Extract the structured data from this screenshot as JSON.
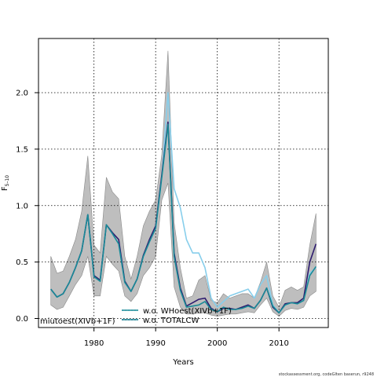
{
  "chart_data": {
    "type": "line",
    "ylabel_main": "F",
    "ylabel_sub": "5–10",
    "xlabel": "Years",
    "xlim": [
      1971,
      2018
    ],
    "ylim": [
      -0.08,
      2.48
    ],
    "xticks": [
      1980,
      1990,
      2000,
      2010
    ],
    "yticks": [
      0.0,
      0.5,
      1.0,
      1.5,
      2.0
    ],
    "ytick_labels": [
      "0.0",
      "0.5",
      "1.0",
      "1.5",
      "2.0"
    ],
    "grid": true,
    "years": [
      1973,
      1974,
      1975,
      1976,
      1977,
      1978,
      1979,
      1980,
      1981,
      1982,
      1983,
      1984,
      1985,
      1986,
      1987,
      1988,
      1989,
      1990,
      1991,
      1992,
      1993,
      1994,
      1995,
      1996,
      1997,
      1998,
      1999,
      2000,
      2001,
      2002,
      2003,
      2004,
      2005,
      2006,
      2007,
      2008,
      2009,
      2010,
      2011,
      2012,
      2013,
      2014,
      2015,
      2016
    ],
    "band": {
      "color": "#bebebe",
      "upper": [
        0.55,
        0.4,
        0.42,
        0.55,
        0.7,
        0.95,
        1.44,
        0.65,
        0.58,
        1.25,
        1.12,
        1.06,
        0.55,
        0.35,
        0.55,
        0.82,
        0.95,
        1.05,
        1.45,
        2.37,
        0.85,
        0.45,
        0.18,
        0.2,
        0.34,
        0.38,
        0.16,
        0.14,
        0.22,
        0.18,
        0.2,
        0.22,
        0.22,
        0.18,
        0.32,
        0.5,
        0.2,
        0.1,
        0.25,
        0.28,
        0.25,
        0.28,
        0.65,
        0.93
      ],
      "lower": [
        0.12,
        0.08,
        0.1,
        0.2,
        0.3,
        0.38,
        0.55,
        0.2,
        0.2,
        0.55,
        0.48,
        0.42,
        0.2,
        0.15,
        0.22,
        0.38,
        0.45,
        0.55,
        1.05,
        1.2,
        0.28,
        0.1,
        0.04,
        0.04,
        0.05,
        0.05,
        0.03,
        0.02,
        0.03,
        0.04,
        0.04,
        0.05,
        0.06,
        0.05,
        0.12,
        0.18,
        0.06,
        0.02,
        0.07,
        0.09,
        0.08,
        0.1,
        0.2,
        0.24
      ]
    },
    "series": [
      {
        "name": "miutoest(XIVb+1F)",
        "color": "#1a8a96",
        "width": 1.6,
        "values": [
          0.26,
          0.19,
          0.22,
          0.32,
          0.45,
          0.6,
          0.92,
          0.37,
          0.33,
          0.83,
          0.75,
          0.66,
          0.32,
          0.24,
          0.35,
          0.55,
          0.68,
          0.8,
          1.25,
          1.72,
          0.55,
          0.25,
          0.1,
          0.11,
          0.12,
          0.15,
          0.08,
          0.06,
          0.1,
          0.08,
          0.08,
          0.09,
          0.11,
          0.09,
          0.16,
          0.27,
          0.11,
          0.05,
          0.12,
          0.14,
          0.13,
          0.16,
          0.38,
          0.46
        ]
      },
      {
        "name": "w.o. WHoest(XIVb+1F)",
        "color": "#87ceeb",
        "width": 1.6,
        "values": [
          0.26,
          0.19,
          0.22,
          0.32,
          0.45,
          0.6,
          0.92,
          0.37,
          0.33,
          0.83,
          0.75,
          0.66,
          0.32,
          0.24,
          0.35,
          0.55,
          0.68,
          0.8,
          1.25,
          2.0,
          1.15,
          0.98,
          0.7,
          0.58,
          0.58,
          0.45,
          0.18,
          0.1,
          0.15,
          0.2,
          0.22,
          0.24,
          0.26,
          0.18,
          0.3,
          0.38,
          0.12,
          0.05,
          0.12,
          0.14,
          0.13,
          0.16,
          0.4,
          0.45
        ]
      },
      {
        "name": "w.o. TOTALCW",
        "color": "#2d1b6e",
        "width": 1.6,
        "values": [
          0.26,
          0.19,
          0.22,
          0.32,
          0.45,
          0.6,
          0.92,
          0.38,
          0.34,
          0.83,
          0.76,
          0.7,
          0.33,
          0.24,
          0.35,
          0.56,
          0.7,
          0.82,
          1.27,
          1.74,
          0.58,
          0.27,
          0.11,
          0.14,
          0.17,
          0.18,
          0.09,
          0.06,
          0.09,
          0.09,
          0.08,
          0.1,
          0.12,
          0.09,
          0.16,
          0.27,
          0.1,
          0.05,
          0.13,
          0.14,
          0.14,
          0.18,
          0.5,
          0.66
        ]
      }
    ],
    "legend": {
      "placement": "bottom-left",
      "labels": [
        "w.o. WHoest(XIVb+1F)",
        "w.o. TOTALCW"
      ],
      "base_label": "miutoest(XIVb+1F)"
    }
  },
  "footer": "stockassessment.org, codeGIten baserun, r9248"
}
